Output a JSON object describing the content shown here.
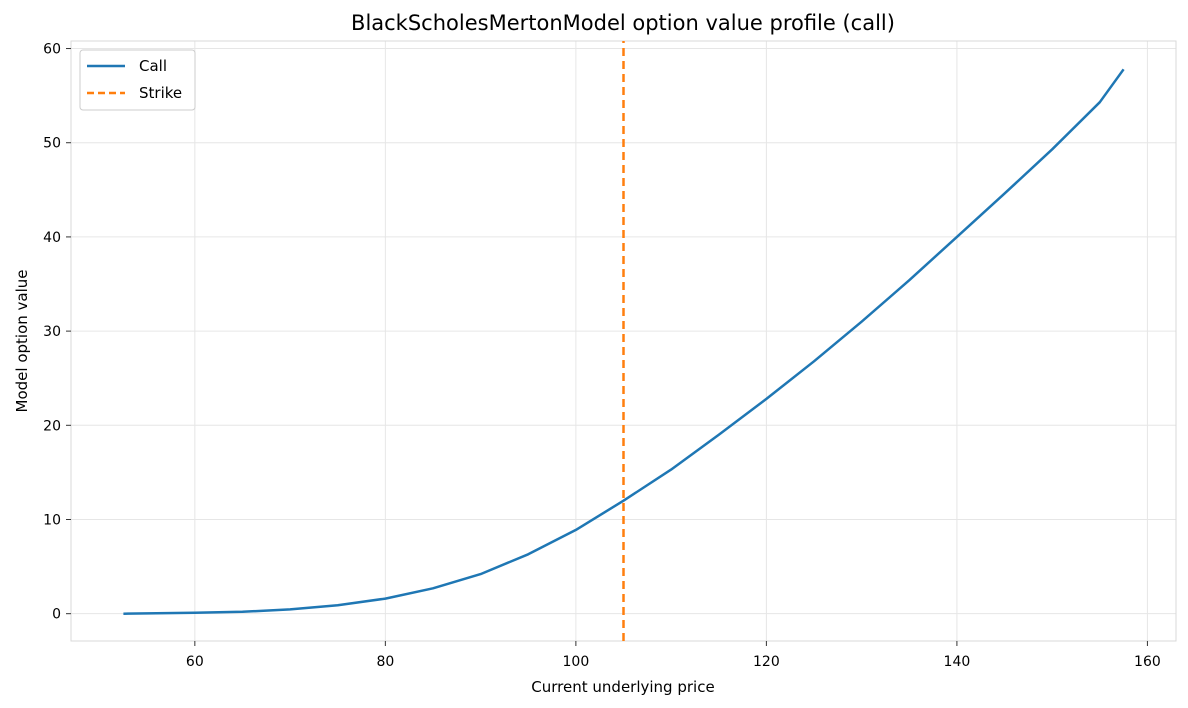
{
  "chart_data": {
    "type": "line",
    "title": "BlackScholesMertonModel option value profile (call)",
    "xlabel": "Current underlying price",
    "ylabel": "Model option value",
    "xlim": [
      47,
      163
    ],
    "ylim": [
      -2.9,
      60.8
    ],
    "xticks": [
      60,
      80,
      100,
      120,
      140,
      160
    ],
    "yticks": [
      0,
      10,
      20,
      30,
      40,
      50,
      60
    ],
    "grid": true,
    "legend_position": "top-left",
    "series": [
      {
        "name": "Call",
        "color": "#1f77b4",
        "style": "solid",
        "x": [
          52.5,
          55,
          60,
          65,
          70,
          75,
          80,
          85,
          90,
          95,
          100,
          105,
          110,
          115,
          120,
          125,
          130,
          135,
          140,
          145,
          150,
          155,
          157.5
        ],
        "y": [
          0.0,
          0.03,
          0.1,
          0.2,
          0.45,
          0.9,
          1.6,
          2.7,
          4.2,
          6.3,
          8.9,
          12.0,
          15.3,
          19.0,
          22.8,
          26.8,
          31.0,
          35.4,
          40.0,
          44.6,
          49.3,
          54.3,
          57.8
        ]
      },
      {
        "name": "Strike",
        "color": "#ff7f0e",
        "style": "dashed",
        "x": [
          105,
          105
        ],
        "y": [
          -2.9,
          60.8
        ]
      }
    ]
  }
}
